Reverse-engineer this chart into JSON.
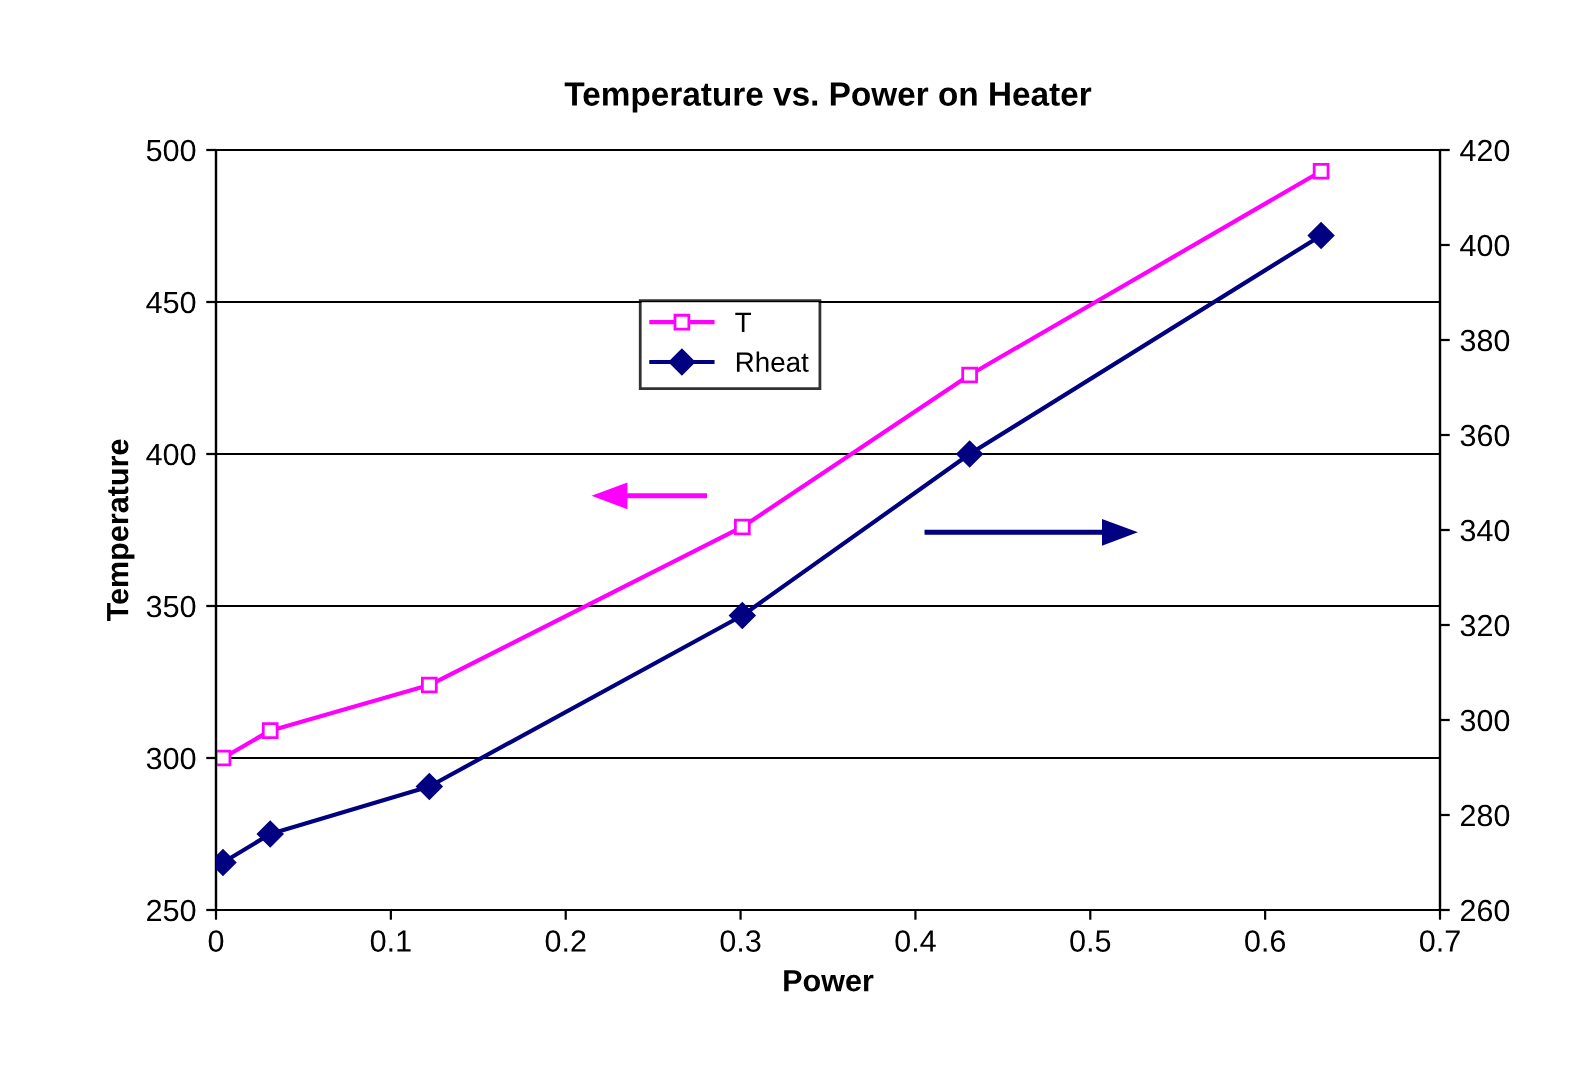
{
  "chart_data": {
    "type": "line",
    "title": "Temperature vs. Power on Heater",
    "xlabel": "Power",
    "ylabel": "Temperature",
    "x": [
      0.004,
      0.031,
      0.122,
      0.301,
      0.431,
      0.632
    ],
    "series": [
      {
        "name": "T",
        "color": "#ff00ff",
        "marker": "square",
        "values": [
          300,
          309,
          324,
          376,
          426,
          493
        ]
      },
      {
        "name": "Rheat",
        "color": "#000080",
        "marker": "diamond",
        "axis": "y2",
        "values": [
          270,
          276,
          286,
          322,
          356,
          402
        ]
      }
    ],
    "xlim": [
      0,
      0.7
    ],
    "xticks": [
      0,
      0.1,
      0.2,
      0.3,
      0.4,
      0.5,
      0.6,
      0.7
    ],
    "ylim": [
      250,
      500
    ],
    "yticks": [
      250,
      300,
      350,
      400,
      450,
      500
    ],
    "y2lim": [
      260,
      420
    ],
    "y2ticks": [
      260,
      280,
      300,
      320,
      340,
      360,
      380,
      400,
      420
    ],
    "grid": "y",
    "legend": "top",
    "line_style": "solid"
  }
}
